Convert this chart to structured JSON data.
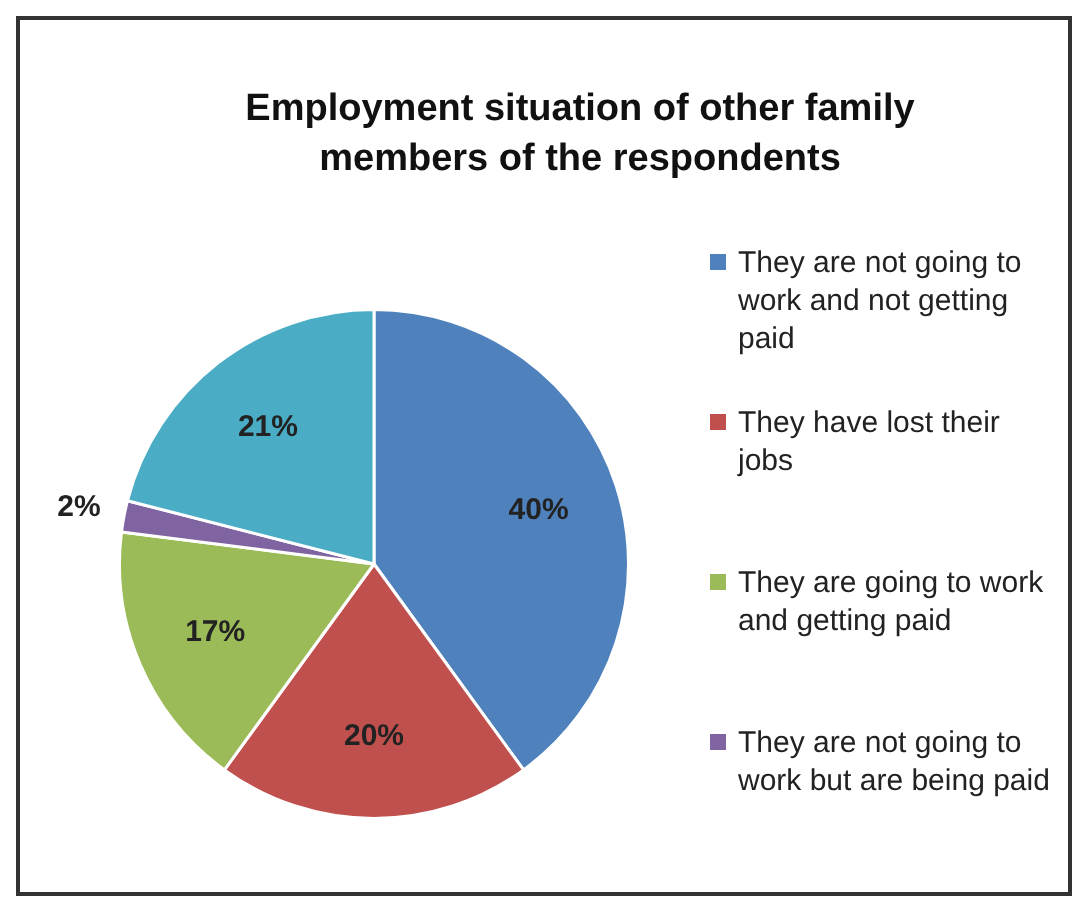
{
  "chart_data": {
    "type": "pie",
    "title": "Employment situation of other family members of the respondents",
    "categories": [
      "They are not going to work and not getting paid",
      "They have lost their jobs",
      "They are going to work and getting paid",
      "They are not going to work but are being paid",
      null
    ],
    "values": [
      40,
      20,
      17,
      2,
      21
    ],
    "value_labels": [
      "40%",
      "20%",
      "17%",
      "2%",
      "21%"
    ],
    "colors": [
      "#4f81bd",
      "#c0504d",
      "#9bbb59",
      "#8064a2",
      "#4bacc6"
    ],
    "legend": "right"
  }
}
